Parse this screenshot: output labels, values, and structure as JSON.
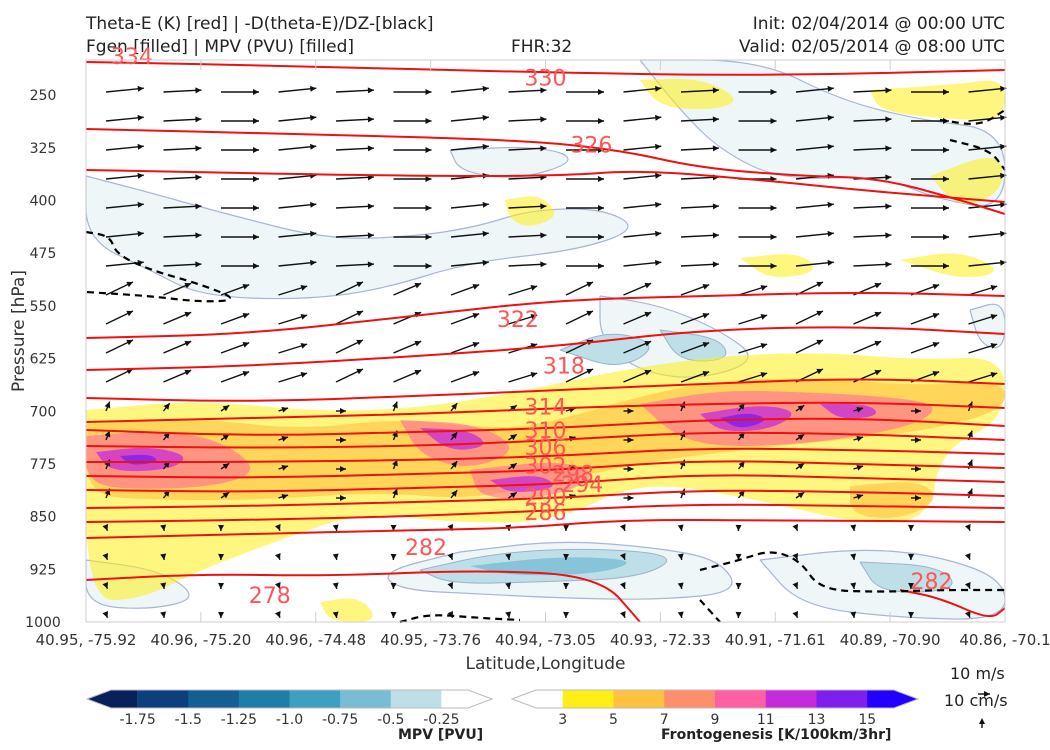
{
  "header": {
    "title_line1": "Theta-E (K) [red] | -D(theta-E)/DZ-[black]",
    "title_line2": "Fgen [filled] | MPV (PVU) [filled]",
    "fhr": "FHR:32",
    "init": "Init: 02/04/2014 @ 00:00 UTC",
    "valid": "Valid: 02/05/2014 @ 08:00 UTC"
  },
  "chart_data": {
    "type": "cross-section",
    "xlabel": "Latitude,Longitude",
    "ylabel": "Pressure [hPa]",
    "x_ticks": [
      "40.95, -75.92",
      "40.96, -75.20",
      "40.96, -74.48",
      "40.95, -73.76",
      "40.94, -73.05",
      "40.93, -72.33",
      "40.91, -71.61",
      "40.89, -70.90",
      "40.86, -70.1"
    ],
    "y_ticks": [
      250,
      325,
      400,
      475,
      550,
      625,
      700,
      775,
      850,
      925,
      1000
    ],
    "ylim": [
      200,
      1000
    ],
    "y_inverted": true,
    "theta_e_contour_labels": [
      {
        "value": "334",
        "x": 0.05,
        "p": 196
      },
      {
        "value": "330",
        "x": 0.5,
        "p": 226
      },
      {
        "value": "326",
        "x": 0.55,
        "p": 322
      },
      {
        "value": "322",
        "x": 0.47,
        "p": 570
      },
      {
        "value": "318",
        "x": 0.52,
        "p": 636
      },
      {
        "value": "314",
        "x": 0.5,
        "p": 695
      },
      {
        "value": "310",
        "x": 0.5,
        "p": 728
      },
      {
        "value": "306",
        "x": 0.5,
        "p": 752
      },
      {
        "value": "302",
        "x": 0.5,
        "p": 779
      },
      {
        "value": "298",
        "x": 0.53,
        "p": 790
      },
      {
        "value": "294",
        "x": 0.54,
        "p": 805
      },
      {
        "value": "290",
        "x": 0.5,
        "p": 823
      },
      {
        "value": "286",
        "x": 0.5,
        "p": 845
      },
      {
        "value": "282",
        "x": 0.37,
        "p": 895
      },
      {
        "value": "278",
        "x": 0.2,
        "p": 963
      },
      {
        "value": "282",
        "x": 0.92,
        "p": 943
      }
    ],
    "mpv_colorbar": {
      "label": "MPV [PVU]",
      "ticks": [
        "-1.75",
        "-1.5",
        "-1.25",
        "-1.0",
        "-0.75",
        "-0.5",
        "-0.25"
      ],
      "colors": [
        "#08215a",
        "#0e3f7d",
        "#155e93",
        "#1f7ea8",
        "#3f9fc0",
        "#79bdd4",
        "#bfdfe8",
        "#ffffff"
      ]
    },
    "fgen_colorbar": {
      "label": "Frontogenesis [K/100km/3hr]",
      "ticks": [
        "3",
        "5",
        "7",
        "9",
        "11",
        "13",
        "15"
      ],
      "colors": [
        "#ffffff",
        "#ffef16",
        "#ffc23f",
        "#ff8e6a",
        "#ff5fa3",
        "#c52bd9",
        "#7e1ff0",
        "#2200ff"
      ]
    },
    "vector_legend": {
      "horizontal": "10 m/s",
      "vertical": "10 cm/s"
    }
  }
}
